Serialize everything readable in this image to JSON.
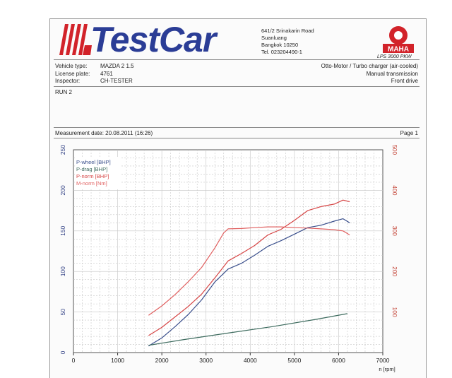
{
  "header": {
    "brand": "TestCar",
    "address": [
      "641/2 Srinakarin Road",
      "Suanluang",
      "Bangkok 10250",
      "Tel. 023204490-1"
    ],
    "maha_logo": "MAHA",
    "maha_model": "LPS 3000 PKW"
  },
  "vehicle": {
    "type_label": "Vehicle type:",
    "type_value": "MAZDA 2 1.5",
    "plate_label": "License plate:",
    "plate_value": "4761",
    "inspector_label": "Inspector:",
    "inspector_value": "CH-TESTER",
    "engine": "Otto-Motor / Turbo charger (air-cooled)",
    "transmission": "Manual transmission",
    "drive": "Front drive"
  },
  "run_label": "RUN 2",
  "measurement_date": "Measurement date: 20.08.2011 (16:26)",
  "page_label": "Page 1",
  "colors": {
    "brand_blue": "#2b3d96",
    "logo_red": "#d2232a",
    "grid": "#c6c6c6"
  },
  "chart_data": {
    "type": "line",
    "xlabel": "n [rpm]",
    "xlim": [
      0,
      7000
    ],
    "x_ticks": [
      0,
      1000,
      2000,
      3000,
      4000,
      5000,
      6000,
      7000
    ],
    "left_axis": {
      "ylim": [
        0,
        250
      ],
      "ticks": [
        0,
        50,
        100,
        150,
        200,
        250
      ],
      "color": "#2a3a80"
    },
    "right_axis": {
      "ylim": [
        0,
        500
      ],
      "ticks": [
        100,
        200,
        300,
        400,
        500
      ],
      "color": "#c0392b"
    },
    "grid": true,
    "legend_position": "top-left",
    "series": [
      {
        "name": "P-wheel [BHP]",
        "color": "#3a4f8c",
        "axis": "left",
        "x": [
          1700,
          2000,
          2300,
          2600,
          2900,
          3200,
          3500,
          3800,
          4100,
          4400,
          4700,
          5000,
          5300,
          5600,
          5900,
          6100,
          6250
        ],
        "y": [
          8,
          18,
          32,
          47,
          65,
          87,
          103,
          110,
          120,
          131,
          138,
          146,
          154,
          157,
          162,
          165,
          160
        ]
      },
      {
        "name": "P-drag [BHP]",
        "color": "#3d6b5e",
        "axis": "left",
        "x": [
          1700,
          2500,
          3500,
          4500,
          5500,
          6200
        ],
        "y": [
          9,
          16,
          24,
          32,
          41,
          48
        ]
      },
      {
        "name": "P-norm [BHP]",
        "color": "#d64545",
        "axis": "left",
        "x": [
          1700,
          2000,
          2300,
          2600,
          2900,
          3200,
          3500,
          3800,
          4100,
          4400,
          4700,
          5000,
          5300,
          5600,
          5900,
          6100,
          6250
        ],
        "y": [
          21,
          31,
          44,
          57,
          72,
          92,
          113,
          122,
          132,
          145,
          152,
          163,
          175,
          180,
          183,
          188,
          186
        ]
      },
      {
        "name": "M-norm [Nm]",
        "color": "#e06060",
        "axis": "right",
        "x": [
          1700,
          2000,
          2300,
          2600,
          2900,
          3200,
          3400,
          3500,
          3800,
          4100,
          4400,
          4700,
          5000,
          5300,
          5600,
          5900,
          6100,
          6250
        ],
        "y": [
          92,
          115,
          143,
          175,
          210,
          258,
          295,
          305,
          306,
          308,
          310,
          310,
          308,
          307,
          305,
          303,
          300,
          290
        ]
      }
    ]
  }
}
